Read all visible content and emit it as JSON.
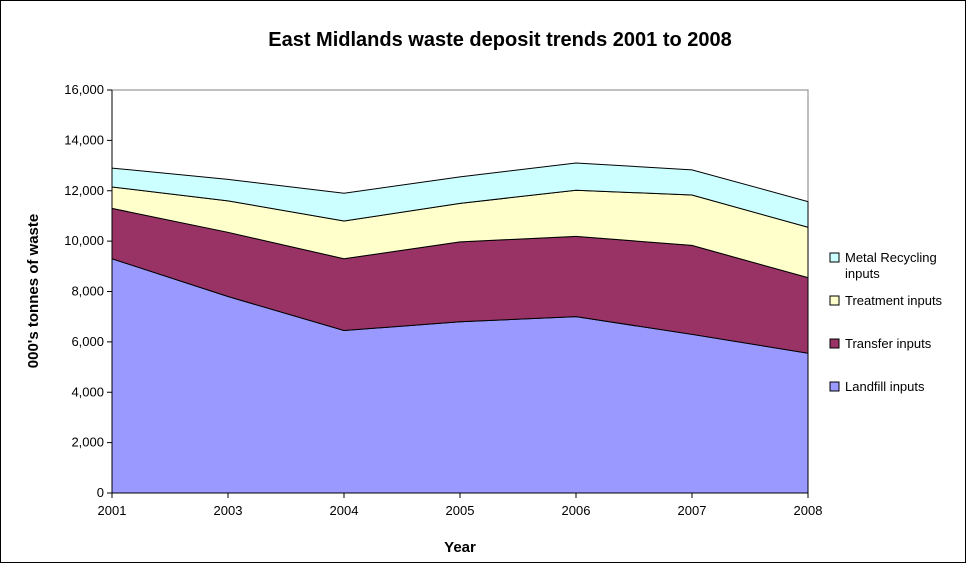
{
  "chart_data": {
    "type": "area",
    "stacked": true,
    "title": "East Midlands waste deposit trends 2001 to 2008",
    "xlabel": "Year",
    "ylabel": "000's tonnes of waste",
    "categories": [
      "2001",
      "2003",
      "2004",
      "2005",
      "2006",
      "2007",
      "2008"
    ],
    "ylim": [
      0,
      16000
    ],
    "yticks": [
      "0",
      "2,000",
      "4,000",
      "6,000",
      "8,000",
      "10,000",
      "12,000",
      "14,000",
      "16,000"
    ],
    "ytick_values": [
      0,
      2000,
      4000,
      6000,
      8000,
      10000,
      12000,
      14000,
      16000
    ],
    "series": [
      {
        "name": "Landfill inputs",
        "color": "#9999ff",
        "values": [
          9300,
          7800,
          6450,
          6800,
          7000,
          6300,
          5550
        ]
      },
      {
        "name": "Transfer inputs",
        "color": "#993366",
        "values": [
          2000,
          2550,
          2850,
          3170,
          3190,
          3530,
          3000
        ]
      },
      {
        "name": "Treatment inputs",
        "color": "#ffffcc",
        "values": [
          850,
          1250,
          1500,
          1530,
          1830,
          2000,
          2000
        ]
      },
      {
        "name": "Metal Recycling inputs",
        "color": "#ccffff",
        "values": [
          750,
          850,
          1100,
          1050,
          1080,
          1000,
          1020
        ]
      }
    ],
    "legend_position": "right",
    "grid": false,
    "plot_background": "#ffffff"
  }
}
